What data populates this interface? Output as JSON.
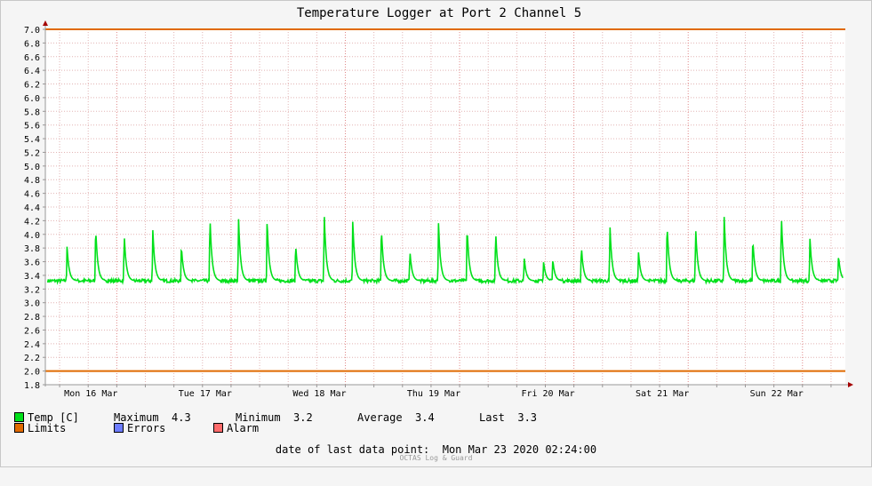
{
  "colors": {
    "temp": "#00e01a",
    "limits": "#e06a00",
    "errors": "#6d7cff",
    "alarm": "#ff6b6b"
  },
  "legend": {
    "temp": "Temp [C]",
    "limits": "Limits",
    "errors": "Errors",
    "alarm": "Alarm",
    "max_label": "Maximum",
    "max_value": "4.3",
    "min_label": "Minimum",
    "min_value": "3.2",
    "avg_label": "Average",
    "avg_value": "3.4",
    "last_label": "Last",
    "last_value": "3.3"
  },
  "footer": {
    "label": "date of last data point:",
    "value": "Mon Mar 23 2020 02:24:00"
  },
  "watermark": "OCTAS Log & Guard",
  "chart_data": {
    "type": "line",
    "title": "Temperature Logger at Port 2 Channel 5",
    "xlabel": "",
    "ylabel": "",
    "ylim": [
      1.8,
      7.0
    ],
    "yticks": [
      "1.8",
      "2.0",
      "2.2",
      "2.4",
      "2.6",
      "2.8",
      "3.0",
      "3.2",
      "3.4",
      "3.6",
      "3.8",
      "4.0",
      "4.2",
      "4.4",
      "4.6",
      "4.8",
      "5.0",
      "5.2",
      "5.4",
      "5.6",
      "5.8",
      "6.0",
      "6.2",
      "6.4",
      "6.6",
      "6.8",
      "7.0"
    ],
    "xlim": [
      0,
      7.0
    ],
    "xticks": [
      {
        "label": "Mon 16 Mar",
        "x": 0.5
      },
      {
        "label": "Tue 17 Mar",
        "x": 1.5
      },
      {
        "label": "Wed 18 Mar",
        "x": 2.5
      },
      {
        "label": "Thu 19 Mar",
        "x": 3.5
      },
      {
        "label": "Fri 20 Mar",
        "x": 4.5
      },
      {
        "label": "Sat 21 Mar",
        "x": 5.5
      },
      {
        "label": "Sun 22 Mar",
        "x": 6.5
      }
    ],
    "grid": true,
    "limits": [
      7.0,
      2.0
    ],
    "series": [
      {
        "name": "Temp [C]",
        "baseline": 3.32,
        "peaks": [
          {
            "x": 0.19,
            "y": 3.82
          },
          {
            "x": 0.44,
            "y": 4.12
          },
          {
            "x": 0.69,
            "y": 4.01
          },
          {
            "x": 0.94,
            "y": 4.08
          },
          {
            "x": 1.19,
            "y": 3.85
          },
          {
            "x": 1.44,
            "y": 4.28
          },
          {
            "x": 1.69,
            "y": 4.27
          },
          {
            "x": 1.94,
            "y": 4.24
          },
          {
            "x": 2.19,
            "y": 3.87
          },
          {
            "x": 2.44,
            "y": 4.33
          },
          {
            "x": 2.69,
            "y": 4.2
          },
          {
            "x": 2.94,
            "y": 4.12
          },
          {
            "x": 3.19,
            "y": 3.76
          },
          {
            "x": 3.44,
            "y": 4.18
          },
          {
            "x": 3.69,
            "y": 4.13
          },
          {
            "x": 3.94,
            "y": 4.06
          },
          {
            "x": 4.19,
            "y": 3.66
          },
          {
            "x": 4.36,
            "y": 3.6
          },
          {
            "x": 4.44,
            "y": 3.64
          },
          {
            "x": 4.69,
            "y": 3.84
          },
          {
            "x": 4.94,
            "y": 4.16
          },
          {
            "x": 5.19,
            "y": 3.75
          },
          {
            "x": 5.44,
            "y": 4.18
          },
          {
            "x": 5.69,
            "y": 4.12
          },
          {
            "x": 5.94,
            "y": 4.27
          },
          {
            "x": 6.19,
            "y": 3.95
          },
          {
            "x": 6.44,
            "y": 4.31
          },
          {
            "x": 6.69,
            "y": 3.96
          },
          {
            "x": 6.94,
            "y": 3.7
          }
        ]
      }
    ]
  }
}
